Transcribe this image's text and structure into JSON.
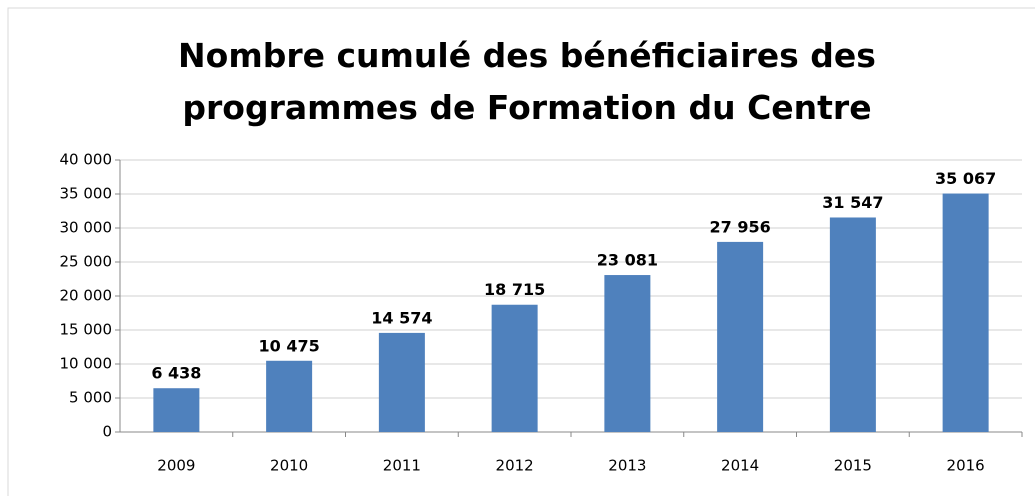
{
  "chart_data": {
    "type": "bar",
    "title": "Nombre cumulé des bénéficiaires des programmes de Formation du Centre",
    "categories": [
      "2009",
      "2010",
      "2011",
      "2012",
      "2013",
      "2014",
      "2015",
      "2016"
    ],
    "values": [
      6438,
      10475,
      14574,
      18715,
      23081,
      27956,
      31547,
      35067
    ],
    "value_labels": [
      "6 438",
      "10 475",
      "14 574",
      "18 715",
      "23 081",
      "27 956",
      "31 547",
      "35 067"
    ],
    "color": "#4f81bd",
    "ylim": [
      0,
      40000
    ],
    "yticks": [
      0,
      {
        "value": 5000,
        "label": "5 000"
      },
      {
        "value": 10000,
        "label": "10 000"
      },
      {
        "value": 15000,
        "label": "15 000"
      },
      {
        "value": 20000,
        "label": "20 000"
      },
      {
        "value": 25000,
        "label": "25 000"
      },
      {
        "value": 30000,
        "label": "30 000"
      },
      {
        "value": 35000,
        "label": "35 000"
      },
      {
        "value": 40000,
        "label": "40 000"
      }
    ],
    "grid": true
  }
}
